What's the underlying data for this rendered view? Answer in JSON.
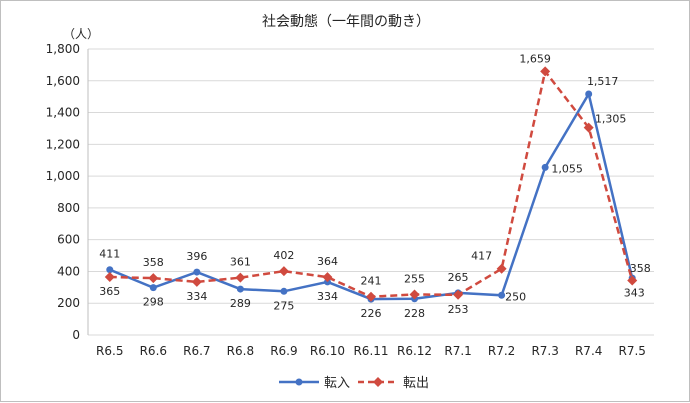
{
  "chart_data": {
    "type": "line",
    "title": "社会動態（一年間の動き）",
    "unit_label": "（人）",
    "categories": [
      "R6.5",
      "R6.6",
      "R6.7",
      "R6.8",
      "R6.9",
      "R6.10",
      "R6.11",
      "R6.12",
      "R7.1",
      "R7.2",
      "R7.3",
      "R7.4",
      "R7.5"
    ],
    "ylim": [
      0,
      1800
    ],
    "yticks": [
      0,
      200,
      400,
      600,
      800,
      1000,
      1200,
      1400,
      1600,
      1800
    ],
    "ytick_labels": [
      "0",
      "200",
      "400",
      "600",
      "800",
      "1,000",
      "1,200",
      "1,400",
      "1,600",
      "1,800"
    ],
    "grid": true,
    "legend_position": "bottom",
    "series": [
      {
        "name": "転入",
        "color": "#4472c4",
        "style": "solid",
        "marker": "circle",
        "values": [
          411,
          298,
          396,
          289,
          275,
          334,
          226,
          228,
          265,
          250,
          1055,
          1517,
          358
        ],
        "labels": [
          "411",
          "298",
          "396",
          "289",
          "275",
          "334",
          "226",
          "228",
          "265",
          "250",
          "1,055",
          "1,517",
          "358"
        ]
      },
      {
        "name": "転出",
        "color": "#d04a3f",
        "style": "dashed",
        "marker": "diamond",
        "values": [
          365,
          358,
          334,
          361,
          402,
          364,
          241,
          255,
          253,
          417,
          1659,
          1305,
          343
        ],
        "labels": [
          "365",
          "358",
          "334",
          "361",
          "402",
          "364",
          "241",
          "255",
          "253",
          "417",
          "1,659",
          "1,305",
          "343"
        ]
      }
    ]
  }
}
